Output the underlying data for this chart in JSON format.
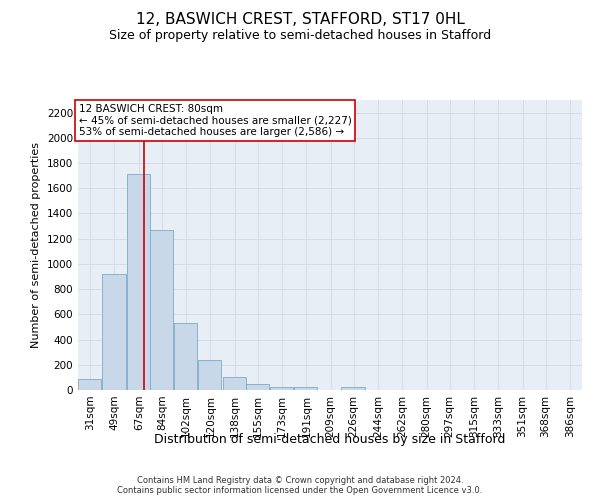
{
  "title": "12, BASWICH CREST, STAFFORD, ST17 0HL",
  "subtitle": "Size of property relative to semi-detached houses in Stafford",
  "xlabel": "Distribution of semi-detached houses by size in Stafford",
  "ylabel": "Number of semi-detached properties",
  "footer_line1": "Contains HM Land Registry data © Crown copyright and database right 2024.",
  "footer_line2": "Contains public sector information licensed under the Open Government Licence v3.0.",
  "annotation_title": "12 BASWICH CREST: 80sqm",
  "annotation_line1": "← 45% of semi-detached houses are smaller (2,227)",
  "annotation_line2": "53% of semi-detached houses are larger (2,586) →",
  "property_size_sqm": 80,
  "bar_color": "#c8d8e8",
  "bar_edge_color": "#7aaac8",
  "red_line_color": "#cc0000",
  "annotation_box_color": "#ffffff",
  "annotation_box_edge": "#cc0000",
  "categories": [
    "31sqm",
    "49sqm",
    "67sqm",
    "84sqm",
    "102sqm",
    "120sqm",
    "138sqm",
    "155sqm",
    "173sqm",
    "191sqm",
    "209sqm",
    "226sqm",
    "244sqm",
    "262sqm",
    "280sqm",
    "297sqm",
    "315sqm",
    "333sqm",
    "351sqm",
    "368sqm",
    "386sqm"
  ],
  "bin_edges": [
    31,
    49,
    67,
    84,
    102,
    120,
    138,
    155,
    173,
    191,
    209,
    226,
    244,
    262,
    280,
    297,
    315,
    333,
    351,
    368,
    386
  ],
  "bin_width": 18,
  "values": [
    90,
    920,
    1710,
    1270,
    530,
    240,
    100,
    45,
    25,
    20,
    0,
    20,
    0,
    0,
    0,
    0,
    0,
    0,
    0,
    0,
    0
  ],
  "ylim": [
    0,
    2300
  ],
  "yticks": [
    0,
    200,
    400,
    600,
    800,
    1000,
    1200,
    1400,
    1600,
    1800,
    2000,
    2200
  ],
  "grid_color": "#d0d8e8",
  "background_color": "#e8eef5",
  "title_fontsize": 11,
  "subtitle_fontsize": 9,
  "xlabel_fontsize": 9,
  "ylabel_fontsize": 8,
  "tick_fontsize": 7.5,
  "annotation_fontsize": 7.5,
  "footer_fontsize": 6
}
